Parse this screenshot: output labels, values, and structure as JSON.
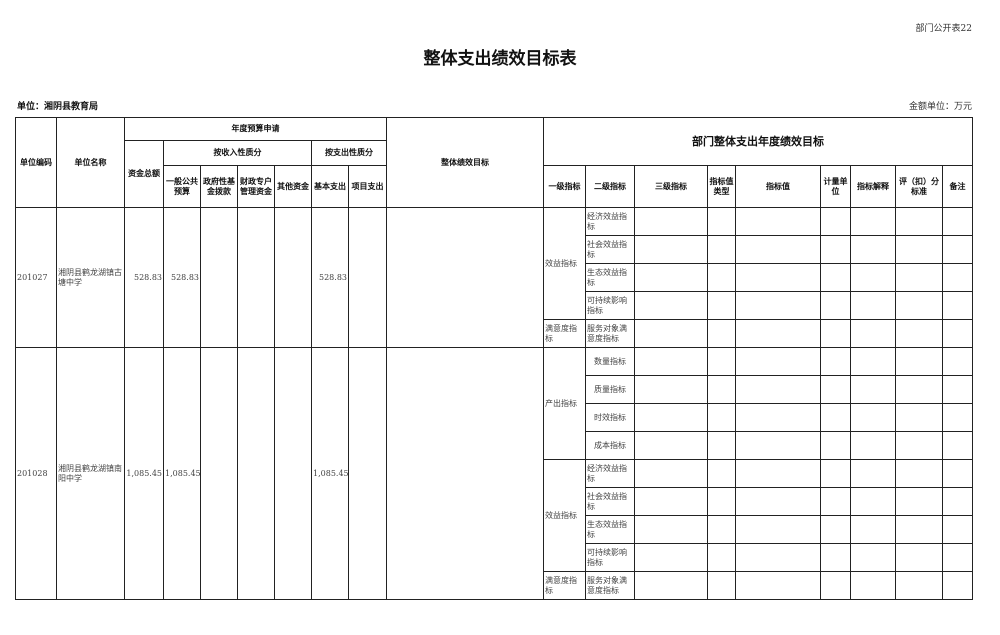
{
  "header": {
    "tag": "部门公开表22",
    "title": "整体支出绩效目标表",
    "unit": "单位：湘阴县教育局",
    "money_unit": "金额单位：万元"
  },
  "columns": {
    "code": "单位编码",
    "name": "单位名称",
    "budget_group": "年度预算申请",
    "total": "资金总额",
    "by_income": "按收入性质分",
    "by_expense": "按支出性质分",
    "general": "一般公共预算",
    "gov_fund": "政府性基金拨款",
    "special": "财政专户管理资金",
    "other": "其他资金",
    "basic": "基本支出",
    "project": "项目支出",
    "overall_goal": "整体绩效目标",
    "dept_goal": "部门整体支出年度绩效目标",
    "level1": "一级指标",
    "level2": "二级指标",
    "level3": "三级指标",
    "value_type": "指标值类型",
    "value": "指标值",
    "measure_unit": "计量单位",
    "explain": "指标解释",
    "score": "评（扣）分标准",
    "remark": "备注"
  },
  "rows": [
    {
      "code": "201027",
      "name": "湘阴县鹤龙湖镇古塘中学",
      "total": "528.83",
      "general": "528.83",
      "gov_fund": "",
      "special": "",
      "other": "",
      "basic": "528.83",
      "project": "",
      "overall_goal": "",
      "indicators": [
        {
          "level1": "效益指标",
          "level2": [
            "经济效益指标",
            "社会效益指标",
            "生态效益指标",
            "可持续影响指标"
          ]
        },
        {
          "level1": "满意度指标",
          "level2": [
            "服务对象满意度指标"
          ]
        }
      ]
    },
    {
      "code": "201028",
      "name": "湘阴县鹤龙湖镇南阳中学",
      "total": "1,085.45",
      "general": "1,085.45",
      "gov_fund": "",
      "special": "",
      "other": "",
      "basic": "1,085.45",
      "project": "",
      "overall_goal": "",
      "indicators": [
        {
          "level1": "产出指标",
          "level2": [
            "数量指标",
            "质量指标",
            "时效指标",
            "成本指标"
          ]
        },
        {
          "level1": "效益指标",
          "level2": [
            "经济效益指标",
            "社会效益指标",
            "生态效益指标",
            "可持续影响指标"
          ]
        },
        {
          "level1": "满意度指标",
          "level2": [
            "服务对象满意度指标"
          ]
        }
      ]
    }
  ]
}
